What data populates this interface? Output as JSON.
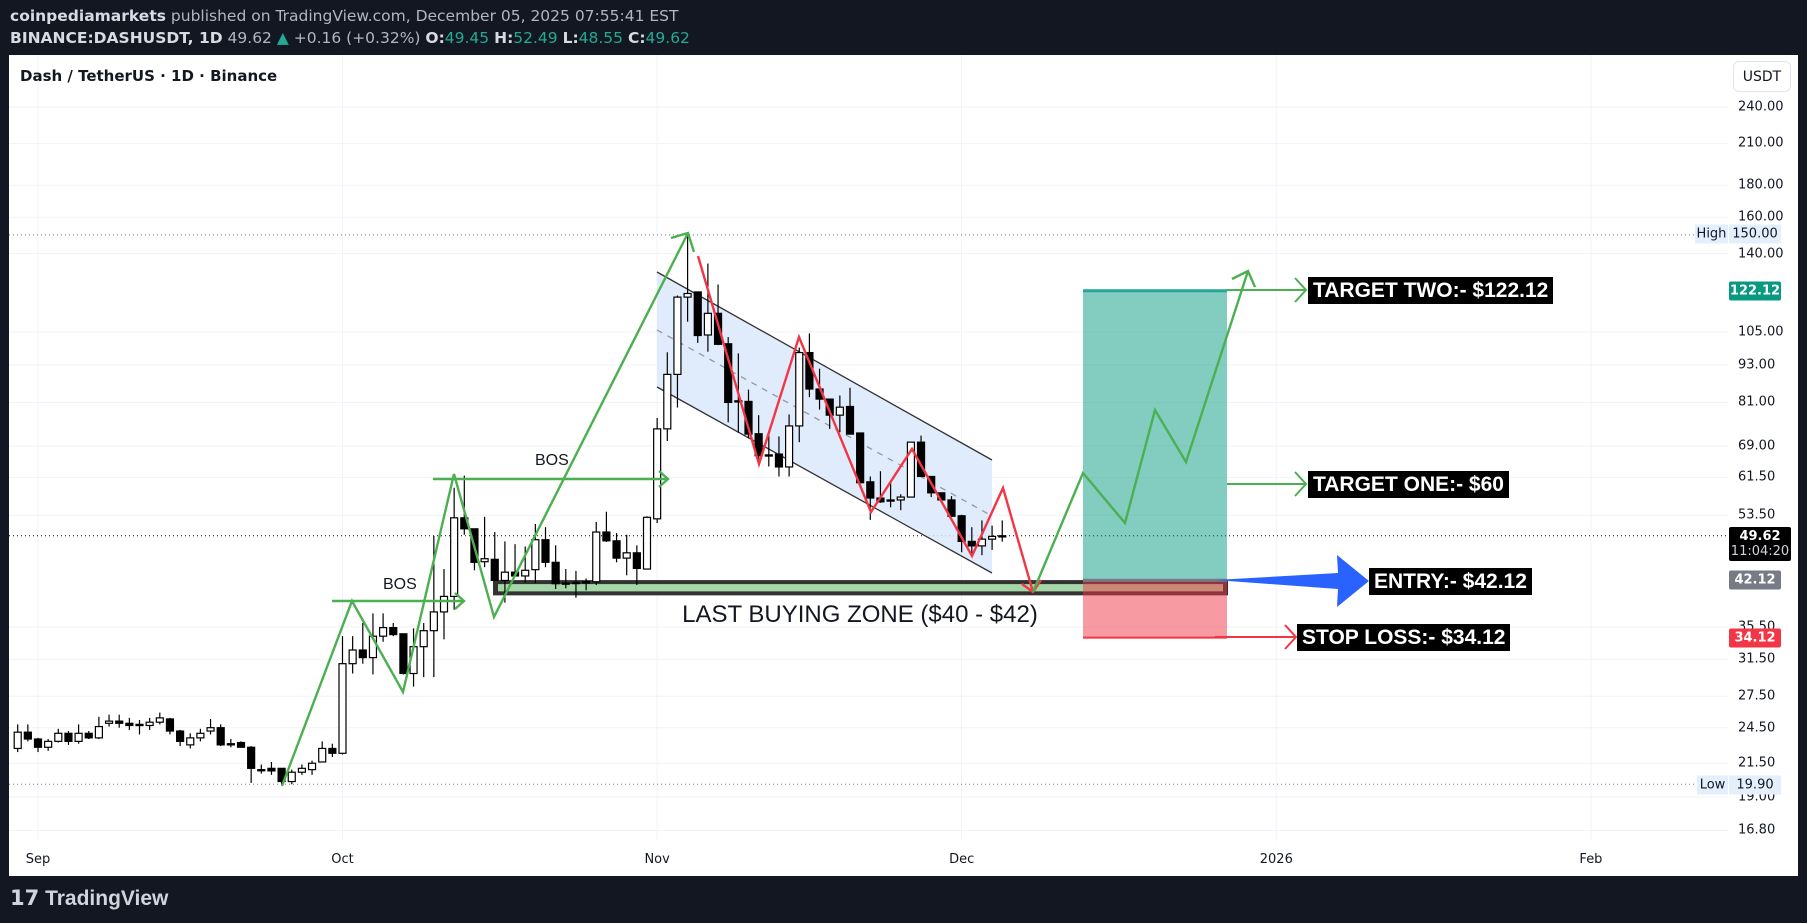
{
  "header": {
    "author": "coinpediamarkets",
    "published": "published on TradingView.com, December 05, 2025 07:55:41 EST",
    "symbol": "BINANCE:DASHUSDT, 1D",
    "last": "49.62",
    "change": "+0.16 (+0.32%)",
    "o_label": "O:",
    "o": "49.45",
    "h_label": "H:",
    "h": "52.49",
    "l_label": "L:",
    "l": "48.55",
    "c_label": "C:",
    "c": "49.62"
  },
  "chart_title": "Dash / TetherUS · 1D · Binance",
  "currency_button": "USDT",
  "footer_logo": "TradingView",
  "colors": {
    "up_body": "#ffffff",
    "down_body": "#000000",
    "target": "#089981",
    "stop": "#f23645",
    "entry_tag": "#787b86",
    "zigzag_up": "#4caf50",
    "zigzag_down": "#f23645",
    "channel_fill": "#dbe9fb",
    "entry_arrow": "#2962ff"
  },
  "chart_data": {
    "type": "candlestick",
    "y_scale": "log",
    "ylim": [
      16.8,
      240
    ],
    "grid": true,
    "y_ticks": [
      "240.00",
      "210.00",
      "180.00",
      "160.00",
      "140.00",
      "105.00",
      "93.00",
      "81.00",
      "69.00",
      "61.50",
      "53.50",
      "35.50",
      "31.50",
      "27.50",
      "24.50",
      "21.50",
      "19.00",
      "16.80"
    ],
    "x_ticks": [
      {
        "label": "Sep",
        "date": "2025-09-01"
      },
      {
        "label": "Oct",
        "date": "2025-10-01"
      },
      {
        "label": "Nov",
        "date": "2025-11-01"
      },
      {
        "label": "Dec",
        "date": "2025-12-01"
      },
      {
        "label": "2026",
        "date": "2026-01-01"
      },
      {
        "label": "Feb",
        "date": "2026-02-01"
      }
    ],
    "high": {
      "label": "High",
      "value": "150.00"
    },
    "low": {
      "label": "Low",
      "value": "19.90"
    },
    "price_tags": {
      "target": "122.12",
      "last": "49.62",
      "countdown": "11:04:20",
      "entry": "42.12",
      "stop": "34.12"
    },
    "candles": [
      [
        "2025-08-30",
        22.7,
        24.8,
        22.4,
        24.1
      ],
      [
        "2025-08-31",
        24.1,
        24.8,
        23.3,
        23.5
      ],
      [
        "2025-09-01",
        23.5,
        23.6,
        22.4,
        22.8
      ],
      [
        "2025-09-02",
        22.8,
        23.5,
        22.5,
        23.3
      ],
      [
        "2025-09-03",
        23.3,
        24.4,
        23.2,
        24.0
      ],
      [
        "2025-09-04",
        24.0,
        24.2,
        23.0,
        23.3
      ],
      [
        "2025-09-05",
        23.3,
        24.8,
        23.1,
        24.0
      ],
      [
        "2025-09-06",
        24.0,
        24.2,
        23.5,
        23.6
      ],
      [
        "2025-09-07",
        23.6,
        25.5,
        23.5,
        24.6
      ],
      [
        "2025-09-08",
        24.9,
        25.7,
        24.6,
        25.1
      ],
      [
        "2025-09-09",
        25.1,
        25.7,
        24.5,
        24.9
      ],
      [
        "2025-09-10",
        24.9,
        25.4,
        24.3,
        24.7
      ],
      [
        "2025-09-11",
        24.8,
        25.2,
        23.9,
        24.8
      ],
      [
        "2025-09-12",
        24.7,
        25.4,
        24.3,
        25.0
      ],
      [
        "2025-09-13",
        25.0,
        25.9,
        24.8,
        25.4
      ],
      [
        "2025-09-14",
        25.3,
        25.4,
        23.9,
        24.2
      ],
      [
        "2025-09-15",
        24.2,
        24.3,
        22.9,
        23.3
      ],
      [
        "2025-09-16",
        23.0,
        24.0,
        22.7,
        23.6
      ],
      [
        "2025-09-17",
        23.6,
        24.4,
        23.3,
        24.0
      ],
      [
        "2025-09-18",
        24.2,
        25.3,
        23.9,
        24.5
      ],
      [
        "2025-09-19",
        24.5,
        24.8,
        22.9,
        23.0
      ],
      [
        "2025-09-20",
        23.1,
        23.5,
        22.8,
        23.1
      ],
      [
        "2025-09-21",
        23.2,
        23.3,
        22.8,
        22.8
      ],
      [
        "2025-09-22",
        22.8,
        22.9,
        20.0,
        21.1
      ],
      [
        "2025-09-23",
        21.0,
        21.4,
        20.7,
        21.0
      ],
      [
        "2025-09-24",
        21.1,
        21.6,
        20.6,
        20.9
      ],
      [
        "2025-09-25",
        21.1,
        21.1,
        19.9,
        20.1
      ],
      [
        "2025-09-26",
        20.1,
        21.0,
        19.9,
        20.8
      ],
      [
        "2025-09-27",
        20.8,
        21.4,
        20.6,
        21.1
      ],
      [
        "2025-09-28",
        21.0,
        21.7,
        20.6,
        21.5
      ],
      [
        "2025-09-29",
        21.6,
        23.3,
        21.6,
        22.7
      ],
      [
        "2025-09-30",
        22.7,
        23.1,
        22.0,
        22.3
      ],
      [
        "2025-10-01",
        22.3,
        34.3,
        22.2,
        31.0
      ],
      [
        "2025-10-02",
        31.0,
        34.3,
        29.9,
        32.6
      ],
      [
        "2025-10-03",
        32.6,
        36.0,
        31.0,
        31.7
      ],
      [
        "2025-10-04",
        31.7,
        37.3,
        29.8,
        34.3
      ],
      [
        "2025-10-05",
        34.3,
        37.3,
        33.6,
        35.4
      ],
      [
        "2025-10-06",
        35.4,
        36.0,
        34.3,
        34.5
      ],
      [
        "2025-10-07",
        34.6,
        34.6,
        29.8,
        29.9
      ],
      [
        "2025-10-08",
        29.9,
        35.3,
        28.5,
        33.0
      ],
      [
        "2025-10-09",
        33.0,
        36.0,
        29.5,
        35.0
      ],
      [
        "2025-10-10",
        35.0,
        49.6,
        29.5,
        37.5
      ],
      [
        "2025-10-11",
        37.5,
        43.9,
        33.9,
        39.7
      ],
      [
        "2025-10-12",
        39.7,
        59.2,
        37.8,
        53.0
      ],
      [
        "2025-10-13",
        53.0,
        61.9,
        49.8,
        50.9
      ],
      [
        "2025-10-14",
        50.9,
        50.9,
        43.7,
        45.0
      ],
      [
        "2025-10-15",
        45.1,
        53.2,
        44.2,
        45.6
      ],
      [
        "2025-10-16",
        45.5,
        50.3,
        42.0,
        42.1
      ],
      [
        "2025-10-17",
        42.1,
        48.6,
        38.8,
        43.4
      ],
      [
        "2025-10-18",
        43.4,
        48.1,
        42.7,
        42.8
      ],
      [
        "2025-10-19",
        42.8,
        47.7,
        41.8,
        43.7
      ],
      [
        "2025-10-20",
        43.8,
        51.8,
        41.7,
        48.9
      ],
      [
        "2025-10-21",
        48.9,
        51.2,
        44.2,
        45.0
      ],
      [
        "2025-10-22",
        45.0,
        47.9,
        40.8,
        41.6
      ],
      [
        "2025-10-23",
        41.6,
        43.9,
        40.9,
        41.7
      ],
      [
        "2025-10-24",
        41.7,
        43.6,
        39.5,
        41.8
      ],
      [
        "2025-10-25",
        41.9,
        42.4,
        40.6,
        41.9
      ],
      [
        "2025-10-26",
        41.9,
        52.2,
        41.4,
        50.3
      ],
      [
        "2025-10-27",
        50.3,
        54.2,
        48.5,
        48.7
      ],
      [
        "2025-10-28",
        48.7,
        50.1,
        45.0,
        45.7
      ],
      [
        "2025-10-29",
        45.7,
        49.8,
        42.9,
        46.6
      ],
      [
        "2025-10-30",
        46.6,
        47.9,
        41.4,
        44.0
      ],
      [
        "2025-10-31",
        43.9,
        53.3,
        43.9,
        53.1
      ],
      [
        "2025-11-01",
        52.8,
        76.5,
        52.0,
        73.5
      ],
      [
        "2025-11-02",
        73.5,
        97.4,
        70.3,
        89.8
      ],
      [
        "2025-11-03",
        89.8,
        120.0,
        79.5,
        119.3
      ],
      [
        "2025-11-04",
        119.3,
        150.0,
        109.0,
        120.9
      ],
      [
        "2025-11-05",
        121.6,
        121.6,
        100.8,
        103.6
      ],
      [
        "2025-11-06",
        103.8,
        135.0,
        97.6,
        112.4
      ],
      [
        "2025-11-07",
        112.4,
        125.0,
        100.0,
        100.3
      ],
      [
        "2025-11-08",
        100.5,
        103.0,
        75.3,
        81.0
      ],
      [
        "2025-11-09",
        81.5,
        97.0,
        72.5,
        81.5
      ],
      [
        "2025-11-10",
        81.3,
        84.9,
        71.0,
        72.1
      ],
      [
        "2025-11-11",
        72.2,
        77.3,
        64.4,
        66.6
      ],
      [
        "2025-11-12",
        66.8,
        71.7,
        64.0,
        66.8
      ],
      [
        "2025-11-13",
        67.0,
        71.5,
        61.7,
        63.9
      ],
      [
        "2025-11-14",
        63.9,
        77.5,
        61.7,
        74.3
      ],
      [
        "2025-11-15",
        74.3,
        99.1,
        70.0,
        97.3
      ],
      [
        "2025-11-16",
        97.3,
        104.4,
        82.6,
        85.1
      ],
      [
        "2025-11-17",
        85.1,
        91.7,
        78.9,
        82.0
      ],
      [
        "2025-11-18",
        82.0,
        82.0,
        73.5,
        77.3
      ],
      [
        "2025-11-19",
        77.3,
        83.1,
        72.6,
        79.6
      ],
      [
        "2025-11-20",
        79.8,
        85.5,
        72.1,
        72.1
      ],
      [
        "2025-11-21",
        72.4,
        72.4,
        60.2,
        60.3
      ],
      [
        "2025-11-22",
        60.5,
        61.7,
        52.6,
        57.0
      ],
      [
        "2025-11-23",
        57.0,
        62.9,
        56.0,
        56.2
      ],
      [
        "2025-11-24",
        56.6,
        60.5,
        55.1,
        56.6
      ],
      [
        "2025-11-25",
        56.6,
        57.8,
        54.5,
        57.2
      ],
      [
        "2025-11-26",
        57.2,
        70.0,
        57.2,
        70.0
      ],
      [
        "2025-11-27",
        70.0,
        71.7,
        61.7,
        61.7
      ],
      [
        "2025-11-28",
        61.7,
        61.7,
        57.2,
        58.1
      ],
      [
        "2025-11-29",
        58.1,
        58.1,
        56.6,
        56.6
      ],
      [
        "2025-11-30",
        56.6,
        57.4,
        53.3,
        53.3
      ],
      [
        "2025-12-01",
        53.4,
        53.6,
        46.7,
        48.6
      ],
      [
        "2025-12-02",
        48.6,
        51.2,
        46.6,
        47.8
      ],
      [
        "2025-12-03",
        47.8,
        52.5,
        46.2,
        49.0
      ],
      [
        "2025-12-04",
        49.0,
        51.5,
        47.1,
        49.5
      ],
      [
        "2025-12-05",
        49.45,
        52.49,
        48.55,
        49.62
      ]
    ],
    "position": {
      "target": 122.12,
      "entry": 42.12,
      "stop": 34.12
    },
    "buying_zone": [
      40,
      42
    ]
  },
  "annotations": {
    "bos_1": "BOS",
    "bos_2": "BOS",
    "zone_label": "LAST BUYING ZONE ($40 - $42)",
    "target_two": "TARGET TWO:- $122.12",
    "target_one": "TARGET ONE:- $60",
    "entry": "ENTRY:- $42.12",
    "stop_loss": "STOP LOSS:- $34.12"
  }
}
